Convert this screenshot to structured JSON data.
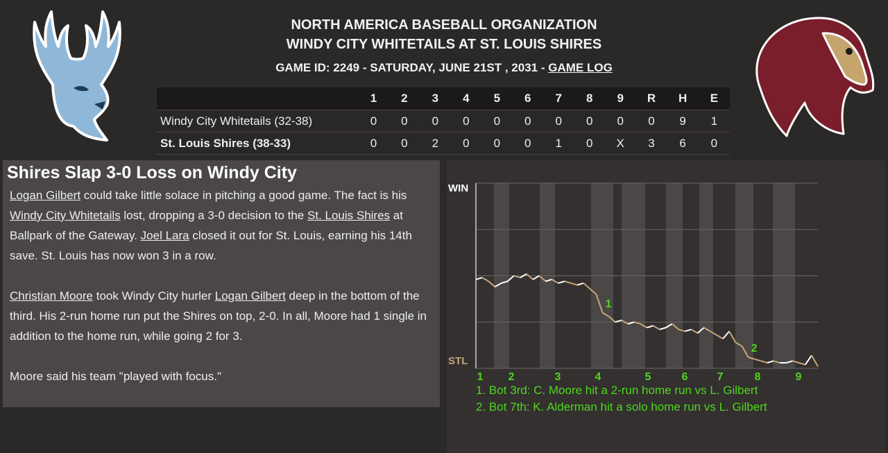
{
  "header": {
    "league": "NORTH AMERICA BASEBALL ORGANIZATION",
    "matchup": "WINDY CITY WHITETAILS AT ST. LOUIS SHIRES",
    "game_info": "GAME ID: 2249 - SATURDAY, JUNE 21ST , 2031 - ",
    "game_log_link": "GAME LOG"
  },
  "logos": {
    "away": {
      "icon": "whitetail-deer-logo-icon",
      "color": "#8fb7d8"
    },
    "home": {
      "icon": "horse-head-logo-icon",
      "color": "#7a1e2c",
      "accent": "#c6a46d"
    }
  },
  "linescore": {
    "columns": [
      "1",
      "2",
      "3",
      "4",
      "5",
      "6",
      "7",
      "8",
      "9",
      "R",
      "H",
      "E"
    ],
    "rows": [
      {
        "team": "Windy City Whitetails (32-38)",
        "values": [
          "0",
          "0",
          "0",
          "0",
          "0",
          "0",
          "0",
          "0",
          "0",
          "0",
          "9",
          "1"
        ]
      },
      {
        "team": "St. Louis Shires (38-33)",
        "values": [
          "0",
          "0",
          "2",
          "0",
          "0",
          "0",
          "1",
          "0",
          "X",
          "3",
          "6",
          "0"
        ]
      }
    ]
  },
  "story": {
    "headline": "Shires Slap 3-0 Loss on Windy City",
    "p1": {
      "a1": "Logan Gilbert",
      "t1": " could take little solace in pitching a good game. The fact is his ",
      "a2": "Windy City Whitetails",
      "t2": " lost, dropping a 3-0 decision to the ",
      "a3": "St. Louis Shires",
      "t3": " at Ballpark of the Gateway. ",
      "a4": "Joel Lara",
      "t4": " closed it out for St. Louis, earning his 14th save. St. Louis has now won 3 in a row."
    },
    "p2": {
      "a1": "Christian Moore",
      "t1": " took Windy City hurler ",
      "a2": "Logan Gilbert",
      "t2": " deep in the bottom of the third. His 2-run home run put the Shires on top, 2-0. In all, Moore had 1 single in addition to the home run, while going 2 for 3."
    },
    "p3": "Moore said his team \"played with focus.\""
  },
  "chart_data": {
    "type": "line",
    "title": "",
    "ylabel_top": "WIN",
    "ylabel_bottom": "STL",
    "ylim": [
      0,
      1
    ],
    "x_tick_labels": [
      "1",
      "2",
      "3",
      "4",
      "5",
      "6",
      "7",
      "8",
      "9"
    ],
    "series": [
      {
        "values": [
          0.48,
          0.49,
          0.47,
          0.44,
          0.46,
          0.47,
          0.5,
          0.49,
          0.51,
          0.48,
          0.5,
          0.47,
          0.48,
          0.46,
          0.47,
          0.46,
          0.45,
          0.46,
          0.43,
          0.4,
          0.3,
          0.28,
          0.25,
          0.26,
          0.24,
          0.25,
          0.24,
          0.22,
          0.23,
          0.21,
          0.22,
          0.24,
          0.21,
          0.2,
          0.21,
          0.19,
          0.22,
          0.2,
          0.18,
          0.16,
          0.2,
          0.14,
          0.12,
          0.06,
          0.05,
          0.04,
          0.03,
          0.04,
          0.03,
          0.03,
          0.04,
          0.03,
          0.02,
          0.07,
          0.01
        ],
        "colors": {
          "stl": "#c8a57a",
          "wcw": "#ffffff"
        }
      }
    ],
    "annotations": [
      {
        "label": "1",
        "text": "1. Bot 3rd: C. Moore hit a 2-run home run vs L. Gilbert"
      },
      {
        "label": "2",
        "text": "2. Bot 7th: K. Alderman hit a solo home run vs L. Gilbert"
      }
    ],
    "annotation_color": "#4fd61e",
    "grid": true
  }
}
